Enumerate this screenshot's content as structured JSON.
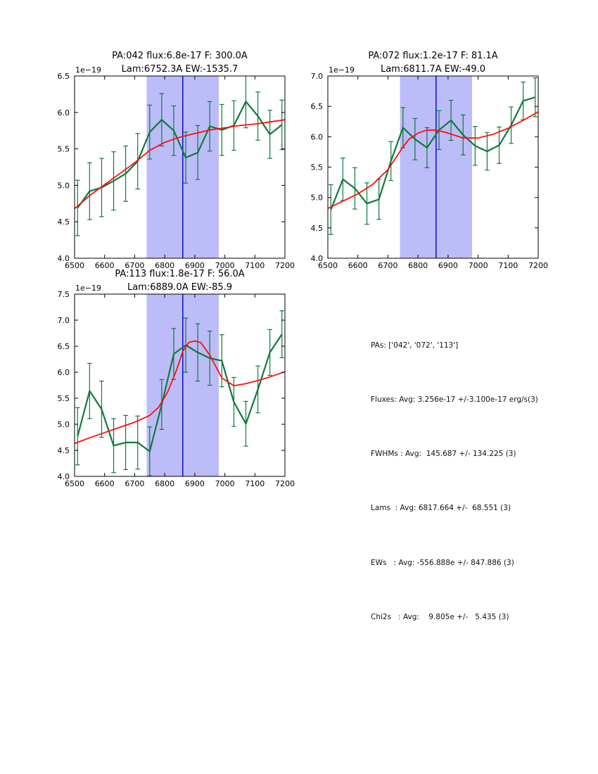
{
  "figure": {
    "background": "#ffffff"
  },
  "colors": {
    "data": "#0f7a3c",
    "fit": "#ff0f0a",
    "band": "#bcbcf8",
    "vline": "#0000cd",
    "frame": "#000000"
  },
  "stats": {
    "lines": [
      "PAs: ['042', '072', '113']",
      "Fluxes: Avg: 3.256e-17 +/-3.100e-17 erg/s(3)",
      "FWHMs : Avg:  145.687 +/- 134.225 (3)",
      "Lams  : Avg: 6817.664 +/-  68.551 (3)",
      "EWs   : Avg: -556.888e +/- 847.886 (3)",
      "Chi2s   : Avg:    9.805e +/-   5.435 (3)"
    ]
  },
  "chart_data": [
    {
      "id": "pa042",
      "type": "line",
      "title_line1": "PA:042 flux:6.8e-17 F: 300.0A",
      "title_line2": "Lam:6752.3A EW:-1535.7",
      "offset_text": "1e−19",
      "xlim": [
        6500,
        7200
      ],
      "ylim": [
        4.0,
        6.5
      ],
      "xticks": [
        6500,
        6600,
        6700,
        6800,
        6900,
        7000,
        7100,
        7200
      ],
      "yticks": [
        4.0,
        4.5,
        5.0,
        5.5,
        6.0,
        6.5
      ],
      "band": [
        6740,
        6980
      ],
      "vline": 6860,
      "grid": false,
      "series": [
        {
          "name": "spectrum",
          "x": [
            6510,
            6550,
            6590,
            6630,
            6670,
            6710,
            6750,
            6790,
            6830,
            6870,
            6910,
            6950,
            6990,
            7030,
            7070,
            7110,
            7150,
            7190
          ],
          "y": [
            4.69,
            4.92,
            4.97,
            5.06,
            5.16,
            5.33,
            5.73,
            5.9,
            5.75,
            5.38,
            5.45,
            5.81,
            5.76,
            5.82,
            6.15,
            5.95,
            5.7,
            5.83
          ],
          "yerr": [
            0.38,
            0.39,
            0.4,
            0.4,
            0.38,
            0.38,
            0.37,
            0.36,
            0.34,
            0.35,
            0.37,
            0.34,
            0.35,
            0.34,
            0.36,
            0.33,
            0.33,
            0.34
          ]
        },
        {
          "name": "fit",
          "x": [
            6500,
            6550,
            6600,
            6650,
            6700,
            6750,
            6800,
            6850,
            6900,
            6950,
            7000,
            7050,
            7100,
            7150,
            7200
          ],
          "y": [
            4.68,
            4.86,
            5.01,
            5.16,
            5.31,
            5.48,
            5.59,
            5.66,
            5.71,
            5.76,
            5.79,
            5.82,
            5.84,
            5.87,
            5.9
          ]
        }
      ]
    },
    {
      "id": "pa072",
      "type": "line",
      "title_line1": "PA:072 flux:1.2e-17 F: 81.1A",
      "title_line2": "Lam:6811.7A EW:-49.0",
      "offset_text": "1e−19",
      "xlim": [
        6500,
        7200
      ],
      "ylim": [
        4.0,
        7.0
      ],
      "xticks": [
        6500,
        6600,
        6700,
        6800,
        6900,
        7000,
        7100,
        7200
      ],
      "yticks": [
        4.0,
        4.5,
        5.0,
        5.5,
        6.0,
        6.5,
        7.0
      ],
      "band": [
        6740,
        6980
      ],
      "vline": 6860,
      "grid": false,
      "series": [
        {
          "name": "spectrum",
          "x": [
            6510,
            6550,
            6590,
            6630,
            6670,
            6710,
            6750,
            6790,
            6830,
            6870,
            6910,
            6950,
            6990,
            7030,
            7070,
            7110,
            7150,
            7190
          ],
          "y": [
            4.8,
            5.3,
            5.15,
            4.9,
            4.97,
            5.6,
            6.15,
            5.96,
            5.82,
            6.11,
            6.27,
            6.03,
            5.85,
            5.76,
            5.86,
            6.19,
            6.59,
            6.65
          ],
          "yerr": [
            0.41,
            0.35,
            0.34,
            0.34,
            0.33,
            0.32,
            0.33,
            0.34,
            0.33,
            0.32,
            0.33,
            0.33,
            0.32,
            0.31,
            0.3,
            0.3,
            0.31,
            0.32
          ]
        },
        {
          "name": "fit",
          "x": [
            6500,
            6550,
            6600,
            6650,
            6700,
            6750,
            6770,
            6800,
            6830,
            6860,
            6900,
            6950,
            7000,
            7050,
            7100,
            7150,
            7200
          ],
          "y": [
            4.82,
            4.94,
            5.06,
            5.22,
            5.46,
            5.83,
            5.96,
            6.06,
            6.11,
            6.11,
            6.06,
            5.98,
            5.98,
            6.04,
            6.14,
            6.27,
            6.41
          ]
        }
      ]
    },
    {
      "id": "pa113",
      "type": "line",
      "title_line1": "PA:113 flux:1.8e-17 F: 56.0A",
      "title_line2": "Lam:6889.0A EW:-85.9",
      "offset_text": "1e−19",
      "xlim": [
        6500,
        7200
      ],
      "ylim": [
        4.0,
        7.5
      ],
      "xticks": [
        6500,
        6600,
        6700,
        6800,
        6900,
        7000,
        7100,
        7200
      ],
      "yticks": [
        4.0,
        4.5,
        5.0,
        5.5,
        6.0,
        6.5,
        7.0,
        7.5
      ],
      "band": [
        6740,
        6980
      ],
      "vline": 6860,
      "grid": false,
      "series": [
        {
          "name": "spectrum",
          "x": [
            6510,
            6550,
            6590,
            6630,
            6670,
            6710,
            6750,
            6790,
            6830,
            6870,
            6910,
            6950,
            6990,
            7030,
            7070,
            7110,
            7150,
            7190
          ],
          "y": [
            4.77,
            5.64,
            5.29,
            4.59,
            4.65,
            4.65,
            4.48,
            5.38,
            6.35,
            6.52,
            6.38,
            6.27,
            6.22,
            5.43,
            5.01,
            5.67,
            6.38,
            6.73
          ],
          "yerr": [
            0.55,
            0.53,
            0.54,
            0.52,
            0.52,
            0.51,
            0.47,
            0.48,
            0.49,
            0.52,
            0.55,
            0.52,
            0.5,
            0.47,
            0.43,
            0.45,
            0.44,
            0.45
          ]
        },
        {
          "name": "fit",
          "x": [
            6500,
            6550,
            6600,
            6650,
            6700,
            6750,
            6780,
            6810,
            6840,
            6860,
            6880,
            6900,
            6920,
            6950,
            6990,
            7030,
            7070,
            7110,
            7150,
            7200
          ],
          "y": [
            4.63,
            4.74,
            4.84,
            4.94,
            5.04,
            5.17,
            5.33,
            5.62,
            6.05,
            6.4,
            6.57,
            6.6,
            6.57,
            6.33,
            5.89,
            5.74,
            5.78,
            5.84,
            5.91,
            6.01
          ]
        }
      ]
    }
  ]
}
